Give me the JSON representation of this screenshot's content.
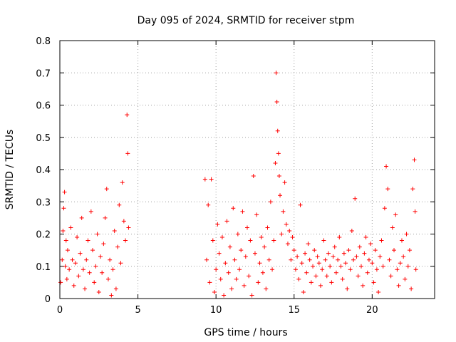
{
  "chart_data": {
    "type": "scatter",
    "title": "Day 095 of 2024, SRMTID for receiver stpm",
    "xlabel": "GPS time / hours",
    "ylabel": "SRMTID / TECUs",
    "xlim": [
      0,
      24
    ],
    "ylim": [
      0,
      0.8
    ],
    "x_ticks": [
      0,
      5,
      10,
      15,
      20
    ],
    "y_ticks": [
      0,
      0.1,
      0.2,
      0.3,
      0.4,
      0.5,
      0.6,
      0.7,
      0.8
    ],
    "y_tick_labels": [
      "0",
      "0.1",
      "0.2",
      "0.3",
      "0.4",
      "0.5",
      "0.6",
      "0.7",
      "0.8"
    ],
    "grid": true,
    "marker": "+",
    "series": [
      {
        "name": "stpm",
        "color": "#ff0000",
        "points": [
          [
            0.05,
            0.05
          ],
          [
            0.15,
            0.12
          ],
          [
            0.2,
            0.21
          ],
          [
            0.25,
            0.28
          ],
          [
            0.3,
            0.33
          ],
          [
            0.35,
            0.1
          ],
          [
            0.4,
            0.18
          ],
          [
            0.45,
            0.06
          ],
          [
            0.5,
            0.15
          ],
          [
            0.6,
            0.09
          ],
          [
            0.7,
            0.22
          ],
          [
            0.8,
            0.12
          ],
          [
            0.9,
            0.04
          ],
          [
            1.0,
            0.11
          ],
          [
            1.1,
            0.19
          ],
          [
            1.2,
            0.07
          ],
          [
            1.3,
            0.14
          ],
          [
            1.4,
            0.25
          ],
          [
            1.5,
            0.09
          ],
          [
            1.6,
            0.03
          ],
          [
            1.7,
            0.12
          ],
          [
            1.8,
            0.18
          ],
          [
            1.9,
            0.08
          ],
          [
            2.0,
            0.27
          ],
          [
            2.1,
            0.15
          ],
          [
            2.2,
            0.05
          ],
          [
            2.3,
            0.1
          ],
          [
            2.4,
            0.2
          ],
          [
            2.5,
            0.02
          ],
          [
            2.6,
            0.13
          ],
          [
            2.7,
            0.08
          ],
          [
            2.8,
            0.17
          ],
          [
            2.9,
            0.25
          ],
          [
            3.0,
            0.34
          ],
          [
            3.1,
            0.06
          ],
          [
            3.2,
            0.12
          ],
          [
            3.3,
            0.01
          ],
          [
            3.4,
            0.09
          ],
          [
            3.5,
            0.21
          ],
          [
            3.6,
            0.03
          ],
          [
            3.7,
            0.16
          ],
          [
            3.8,
            0.29
          ],
          [
            3.9,
            0.11
          ],
          [
            4.0,
            0.36
          ],
          [
            4.1,
            0.24
          ],
          [
            4.2,
            0.18
          ],
          [
            4.3,
            0.57
          ],
          [
            4.35,
            0.45
          ],
          [
            4.4,
            0.22
          ],
          [
            9.3,
            0.37
          ],
          [
            9.4,
            0.12
          ],
          [
            9.5,
            0.29
          ],
          [
            9.6,
            0.05
          ],
          [
            9.7,
            0.37
          ],
          [
            9.8,
            0.18
          ],
          [
            9.9,
            0.02
          ],
          [
            10.0,
            0.09
          ],
          [
            10.1,
            0.23
          ],
          [
            10.2,
            0.14
          ],
          [
            10.3,
            0.06
          ],
          [
            10.4,
            0.19
          ],
          [
            10.5,
            0.01
          ],
          [
            10.6,
            0.11
          ],
          [
            10.7,
            0.24
          ],
          [
            10.8,
            0.08
          ],
          [
            10.9,
            0.16
          ],
          [
            11.0,
            0.03
          ],
          [
            11.1,
            0.28
          ],
          [
            11.2,
            0.12
          ],
          [
            11.3,
            0.06
          ],
          [
            11.4,
            0.2
          ],
          [
            11.5,
            0.09
          ],
          [
            11.6,
            0.15
          ],
          [
            11.7,
            0.27
          ],
          [
            11.8,
            0.04
          ],
          [
            11.9,
            0.13
          ],
          [
            12.0,
            0.22
          ],
          [
            12.1,
            0.07
          ],
          [
            12.2,
            0.18
          ],
          [
            12.3,
            0.01
          ],
          [
            12.4,
            0.38
          ],
          [
            12.5,
            0.14
          ],
          [
            12.6,
            0.26
          ],
          [
            12.7,
            0.05
          ],
          [
            12.8,
            0.11
          ],
          [
            12.9,
            0.19
          ],
          [
            13.0,
            0.08
          ],
          [
            13.1,
            0.16
          ],
          [
            13.2,
            0.03
          ],
          [
            13.3,
            0.22
          ],
          [
            13.4,
            0.12
          ],
          [
            13.5,
            0.3
          ],
          [
            13.6,
            0.09
          ],
          [
            13.7,
            0.18
          ],
          [
            13.8,
            0.42
          ],
          [
            13.85,
            0.7
          ],
          [
            13.9,
            0.61
          ],
          [
            13.95,
            0.52
          ],
          [
            14.0,
            0.45
          ],
          [
            14.05,
            0.38
          ],
          [
            14.1,
            0.32
          ],
          [
            14.2,
            0.2
          ],
          [
            14.3,
            0.27
          ],
          [
            14.4,
            0.36
          ],
          [
            14.5,
            0.23
          ],
          [
            14.6,
            0.17
          ],
          [
            14.7,
            0.21
          ],
          [
            14.8,
            0.12
          ],
          [
            14.9,
            0.19
          ],
          [
            15.0,
            0.15
          ],
          [
            15.1,
            0.09
          ],
          [
            15.2,
            0.13
          ],
          [
            15.3,
            0.06
          ],
          [
            15.4,
            0.29
          ],
          [
            15.5,
            0.11
          ],
          [
            15.6,
            0.02
          ],
          [
            15.7,
            0.14
          ],
          [
            15.8,
            0.08
          ],
          [
            15.9,
            0.17
          ],
          [
            16.0,
            0.12
          ],
          [
            16.1,
            0.05
          ],
          [
            16.2,
            0.1
          ],
          [
            16.3,
            0.15
          ],
          [
            16.4,
            0.07
          ],
          [
            16.5,
            0.13
          ],
          [
            16.6,
            0.11
          ],
          [
            16.7,
            0.04
          ],
          [
            16.8,
            0.09
          ],
          [
            16.9,
            0.18
          ],
          [
            17.0,
            0.12
          ],
          [
            17.1,
            0.07
          ],
          [
            17.2,
            0.14
          ],
          [
            17.3,
            0.1
          ],
          [
            17.4,
            0.05
          ],
          [
            17.5,
            0.13
          ],
          [
            17.6,
            0.16
          ],
          [
            17.7,
            0.08
          ],
          [
            17.8,
            0.12
          ],
          [
            17.9,
            0.19
          ],
          [
            18.0,
            0.1
          ],
          [
            18.1,
            0.06
          ],
          [
            18.2,
            0.14
          ],
          [
            18.3,
            0.11
          ],
          [
            18.4,
            0.03
          ],
          [
            18.5,
            0.15
          ],
          [
            18.6,
            0.09
          ],
          [
            18.7,
            0.21
          ],
          [
            18.8,
            0.12
          ],
          [
            18.9,
            0.31
          ],
          [
            19.0,
            0.13
          ],
          [
            19.1,
            0.07
          ],
          [
            19.2,
            0.16
          ],
          [
            19.3,
            0.1
          ],
          [
            19.4,
            0.04
          ],
          [
            19.5,
            0.14
          ],
          [
            19.6,
            0.19
          ],
          [
            19.7,
            0.08
          ],
          [
            19.8,
            0.12
          ],
          [
            19.9,
            0.17
          ],
          [
            20.0,
            0.11
          ],
          [
            20.1,
            0.05
          ],
          [
            20.2,
            0.15
          ],
          [
            20.3,
            0.09
          ],
          [
            20.4,
            0.02
          ],
          [
            20.5,
            0.13
          ],
          [
            20.6,
            0.18
          ],
          [
            20.7,
            0.1
          ],
          [
            20.8,
            0.28
          ],
          [
            20.9,
            0.41
          ],
          [
            21.0,
            0.34
          ],
          [
            21.1,
            0.12
          ],
          [
            21.2,
            0.07
          ],
          [
            21.3,
            0.22
          ],
          [
            21.4,
            0.15
          ],
          [
            21.5,
            0.26
          ],
          [
            21.6,
            0.09
          ],
          [
            21.7,
            0.04
          ],
          [
            21.8,
            0.11
          ],
          [
            21.9,
            0.18
          ],
          [
            22.0,
            0.13
          ],
          [
            22.1,
            0.06
          ],
          [
            22.2,
            0.2
          ],
          [
            22.3,
            0.1
          ],
          [
            22.4,
            0.15
          ],
          [
            22.5,
            0.03
          ],
          [
            22.6,
            0.34
          ],
          [
            22.7,
            0.43
          ],
          [
            22.75,
            0.27
          ],
          [
            22.8,
            0.09
          ]
        ]
      }
    ]
  }
}
